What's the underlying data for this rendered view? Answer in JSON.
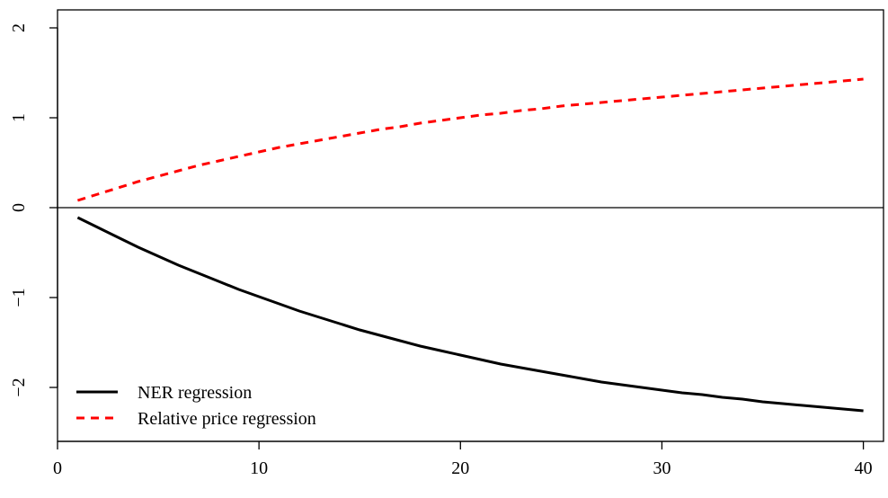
{
  "chart_data": {
    "type": "line",
    "title": "",
    "xlabel": "",
    "ylabel": "",
    "xlim": [
      0,
      41
    ],
    "ylim": [
      -2.6,
      2.2
    ],
    "x_ticks": [
      0,
      10,
      20,
      30,
      40
    ],
    "y_ticks": [
      -2,
      -1,
      0,
      1,
      2
    ],
    "y_tick_labels": [
      "−2",
      "−1",
      "0",
      "1",
      "2"
    ],
    "hline": 0,
    "grid": false,
    "legend_position": "bottom-left",
    "series": [
      {
        "name": "NER regression",
        "color": "#000000",
        "dash": "solid",
        "x": [
          1,
          2,
          3,
          4,
          5,
          6,
          7,
          8,
          9,
          10,
          11,
          12,
          13,
          14,
          15,
          16,
          17,
          18,
          19,
          20,
          21,
          22,
          23,
          24,
          25,
          26,
          27,
          28,
          29,
          30,
          31,
          32,
          33,
          34,
          35,
          36,
          37,
          38,
          39,
          40
        ],
        "values": [
          -0.11,
          -0.22,
          -0.33,
          -0.44,
          -0.54,
          -0.64,
          -0.73,
          -0.82,
          -0.91,
          -0.99,
          -1.07,
          -1.15,
          -1.22,
          -1.29,
          -1.36,
          -1.42,
          -1.48,
          -1.54,
          -1.59,
          -1.64,
          -1.69,
          -1.74,
          -1.78,
          -1.82,
          -1.86,
          -1.9,
          -1.94,
          -1.97,
          -2.0,
          -2.03,
          -2.06,
          -2.08,
          -2.11,
          -2.13,
          -2.16,
          -2.18,
          -2.2,
          -2.22,
          -2.24,
          -2.26
        ]
      },
      {
        "name": "Relative price regression",
        "color": "#ff0000",
        "dash": "dashed",
        "x": [
          1,
          2,
          3,
          4,
          5,
          6,
          7,
          8,
          9,
          10,
          11,
          12,
          13,
          14,
          15,
          16,
          17,
          18,
          19,
          20,
          21,
          22,
          23,
          24,
          25,
          26,
          27,
          28,
          29,
          30,
          31,
          32,
          33,
          34,
          35,
          36,
          37,
          38,
          39,
          40
        ],
        "values": [
          0.08,
          0.15,
          0.22,
          0.29,
          0.35,
          0.41,
          0.47,
          0.52,
          0.57,
          0.62,
          0.67,
          0.71,
          0.75,
          0.79,
          0.83,
          0.87,
          0.9,
          0.94,
          0.97,
          1.0,
          1.03,
          1.05,
          1.08,
          1.1,
          1.13,
          1.15,
          1.17,
          1.19,
          1.21,
          1.23,
          1.25,
          1.27,
          1.29,
          1.31,
          1.33,
          1.35,
          1.37,
          1.39,
          1.41,
          1.43
        ]
      }
    ]
  }
}
